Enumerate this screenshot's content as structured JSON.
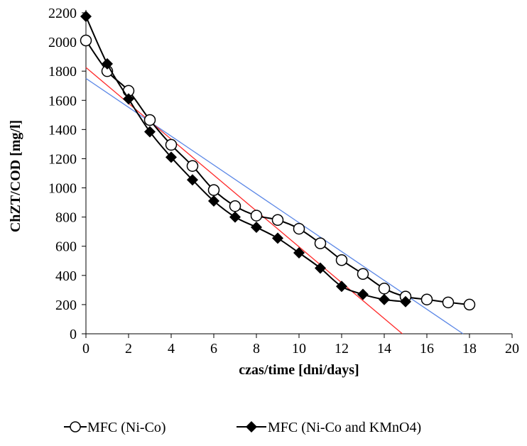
{
  "colors": {
    "series1": "#1a1aff",
    "series2": "#ff1a1a",
    "trend1": "#5b87e6",
    "trend2": "#ff2a2a",
    "marker": "#000000"
  },
  "chart_data": {
    "type": "line",
    "title": "",
    "xlabel": "czas/time [dni/days]",
    "ylabel": "ChZT/COD [mg/l]",
    "xlim": [
      0,
      20
    ],
    "ylim": [
      0,
      2200
    ],
    "xticks": [
      "0",
      "2",
      "4",
      "6",
      "8",
      "10",
      "12",
      "14",
      "16",
      "18",
      "20"
    ],
    "yticks": [
      "0",
      "200",
      "400",
      "600",
      "800",
      "1000",
      "1200",
      "1400",
      "1600",
      "1800",
      "2000",
      "2200"
    ],
    "grid": false,
    "legend_position": "bottom",
    "series": [
      {
        "name": "MFC (Ni-Co)",
        "marker": "open-circle",
        "x": [
          0,
          1,
          2,
          3,
          4,
          5,
          6,
          7,
          8,
          9,
          10,
          11,
          12,
          13,
          14,
          15,
          16,
          17,
          18
        ],
        "y": [
          2010,
          1800,
          1665,
          1465,
          1295,
          1150,
          985,
          875,
          810,
          780,
          720,
          620,
          505,
          410,
          310,
          255,
          235,
          215,
          200
        ]
      },
      {
        "name": "MFC (Ni-Co and KMnO4)",
        "marker": "filled-diamond",
        "x": [
          0,
          1,
          2,
          3,
          4,
          5,
          6,
          7,
          8,
          9,
          10,
          11,
          12,
          13,
          14,
          15
        ],
        "y": [
          2175,
          1850,
          1610,
          1385,
          1210,
          1055,
          910,
          800,
          730,
          655,
          555,
          450,
          325,
          270,
          235,
          220
        ]
      }
    ],
    "trendlines": [
      {
        "series": "MFC (Ni-Co)",
        "x": [
          0,
          17.7
        ],
        "y": [
          1750,
          0
        ]
      },
      {
        "series": "MFC (Ni-Co and KMnO4)",
        "x": [
          0,
          14.85
        ],
        "y": [
          1825,
          0
        ]
      }
    ]
  }
}
